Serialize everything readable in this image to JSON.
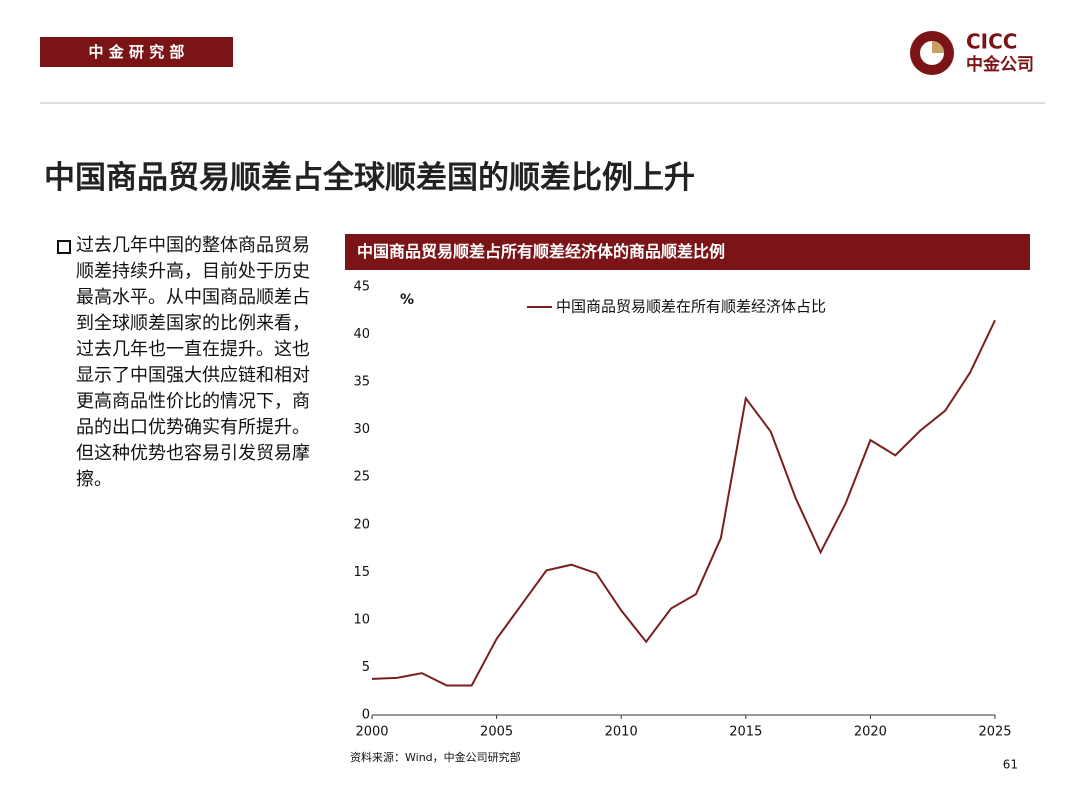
{
  "header": {
    "department": "中 金 研 究 部",
    "logo_en": "CICC",
    "logo_cn": "中金公司"
  },
  "title": "中国商品贸易顺差占全球顺差国的顺差比例上升",
  "bullet": "过去几年中国的整体商品贸易顺差持续升高，目前处于历史最高水平。从中国商品顺差占到全球顺差国家的比例来看，过去几年也一直在提升。这也显示了中国强大供应链和相对更高商品性价比的情况下，商品的出口优势确实有所提升。但这种优势也容易引发贸易摩擦。",
  "chart_data": {
    "type": "line",
    "title": "中国商品贸易顺差占所有顺差经济体的商品顺差比例",
    "y_unit": "%",
    "x": [
      2000,
      2001,
      2002,
      2003,
      2004,
      2005,
      2006,
      2007,
      2008,
      2009,
      2010,
      2011,
      2012,
      2013,
      2014,
      2015,
      2016,
      2017,
      2018,
      2019,
      2020,
      2021,
      2022,
      2023,
      2024,
      2025
    ],
    "series": [
      {
        "name": "中国商品贸易顺差在所有顺差经济体占比",
        "color": "#7a1f1f",
        "values": [
          3.8,
          3.9,
          4.4,
          3.1,
          3.1,
          8.0,
          11.6,
          15.2,
          15.8,
          14.9,
          11.0,
          7.7,
          11.2,
          12.7,
          18.6,
          33.3,
          29.8,
          22.8,
          17.1,
          22.2,
          28.9,
          27.3,
          29.9,
          32.0,
          36.0,
          41.5
        ]
      }
    ],
    "xlim": [
      2000,
      2025
    ],
    "xticks": [
      2000,
      2005,
      2010,
      2015,
      2020,
      2025
    ],
    "ylim": [
      0,
      45
    ],
    "yticks": [
      0,
      5,
      10,
      15,
      20,
      25,
      30,
      35,
      40,
      45
    ],
    "grid": false,
    "legend": "top"
  },
  "source": "资料来源：Wind，中金公司研究部",
  "page_number": "61"
}
